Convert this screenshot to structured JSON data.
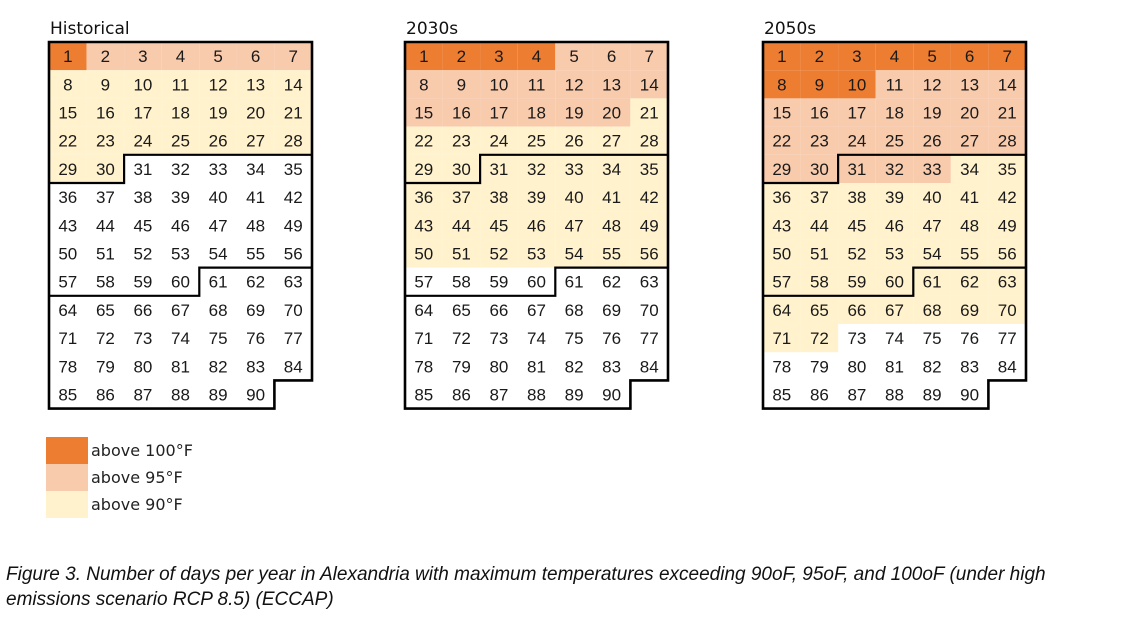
{
  "chart_data": [
    {
      "type": "heatmap",
      "title": "Historical",
      "days": 90,
      "columns": 7,
      "above_100F_days": 1,
      "above_95F_days": 7,
      "above_90F_days": 30,
      "groups": [
        {
          "label": "above 100°F",
          "color": "#ed7d31",
          "cells": [
            1
          ]
        },
        {
          "label": "above 95°F",
          "color": "#f8cbad",
          "cells": [
            2,
            3,
            4,
            5,
            6,
            7
          ]
        },
        {
          "label": "above 90°F",
          "color": "#fff2cc",
          "cells": [
            8,
            9,
            10,
            11,
            12,
            13,
            14,
            15,
            16,
            17,
            18,
            19,
            20,
            21,
            22,
            23,
            24,
            25,
            26,
            27,
            28,
            29,
            30
          ]
        }
      ]
    },
    {
      "type": "heatmap",
      "title": "2030s",
      "days": 90,
      "columns": 7,
      "above_100F_days": 4,
      "above_95F_days": 20,
      "above_90F_days": 56,
      "groups": [
        {
          "label": "above 100°F",
          "color": "#ed7d31",
          "cells": [
            1,
            2,
            3,
            4
          ]
        },
        {
          "label": "above 95°F",
          "color": "#f8cbad",
          "cells": [
            5,
            6,
            7,
            8,
            9,
            10,
            11,
            12,
            13,
            14,
            15,
            16,
            17,
            18,
            19,
            20
          ]
        },
        {
          "label": "above 90°F",
          "color": "#fff2cc",
          "cells": [
            21,
            22,
            23,
            24,
            25,
            26,
            27,
            28,
            29,
            30,
            31,
            32,
            33,
            34,
            35,
            36,
            37,
            38,
            39,
            40,
            41,
            42,
            43,
            44,
            45,
            46,
            47,
            48,
            49,
            50,
            51,
            52,
            53,
            54,
            55,
            56
          ]
        }
      ]
    },
    {
      "type": "heatmap",
      "title": "2050s",
      "days": 90,
      "columns": 7,
      "above_100F_days": 10,
      "above_95F_days": 33,
      "above_90F_days": 72,
      "groups": [
        {
          "label": "above 100°F",
          "color": "#ed7d31",
          "cells": [
            1,
            2,
            3,
            4,
            5,
            6,
            7,
            8,
            9,
            10
          ]
        },
        {
          "label": "above 95°F",
          "color": "#f8cbad",
          "cells": [
            11,
            12,
            13,
            14,
            15,
            16,
            17,
            18,
            19,
            20,
            21,
            22,
            23,
            24,
            25,
            26,
            27,
            28,
            29,
            30,
            31,
            32,
            33
          ]
        },
        {
          "label": "above 90°F",
          "color": "#fff2cc",
          "cells": [
            34,
            35,
            36,
            37,
            38,
            39,
            40,
            41,
            42,
            43,
            44,
            45,
            46,
            47,
            48,
            49,
            50,
            51,
            52,
            53,
            54,
            55,
            56,
            57,
            58,
            59,
            60,
            61,
            62,
            63,
            64,
            65,
            66,
            67,
            68,
            69,
            70,
            71,
            72
          ]
        }
      ]
    }
  ],
  "legend": [
    {
      "label": "above 100°F",
      "color": "#ed7d31"
    },
    {
      "label": "above 95°F",
      "color": "#f8cbad"
    },
    {
      "label": "above 90°F",
      "color": "#fff2cc"
    }
  ],
  "caption": "Figure 3. Number of days per year in Alexandria with maximum temperatures exceeding 90oF, 95oF, and 100oF (under high emissions scenario RCP 8.5) (ECCAP)"
}
